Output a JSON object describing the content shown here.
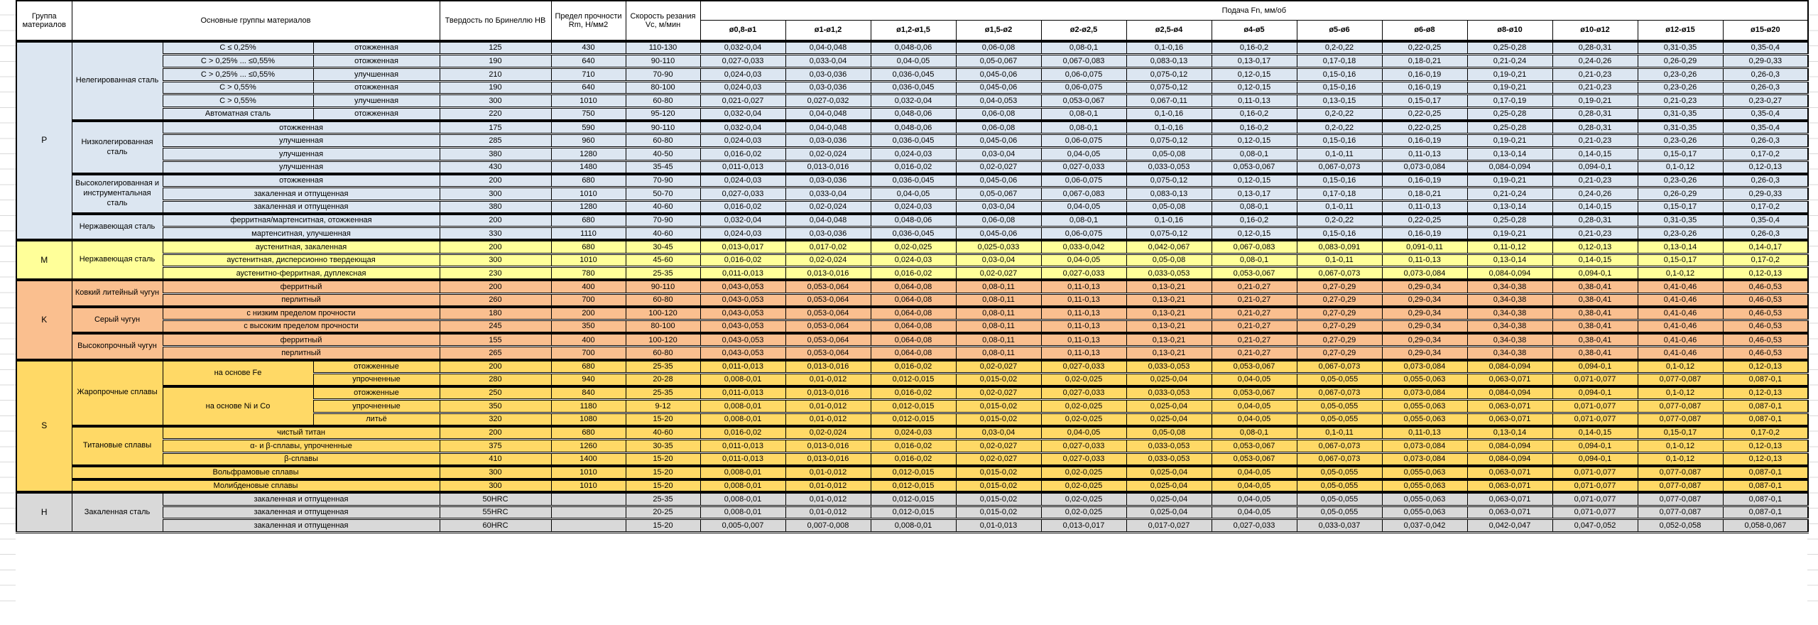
{
  "header": {
    "group": "Группа материалов",
    "materials": "Основные группы материалов",
    "hardness": "Твердость по Бринеллю HB",
    "strength": "Предел прочности Rm, Н/мм2",
    "speed": "Скорость резания Vc, м/мин",
    "feed": "Подача Fn, мм/об",
    "diameters": [
      "ø0,8-ø1",
      "ø1-ø1,2",
      "ø1,2-ø1,5",
      "ø1,5-ø2",
      "ø2-ø2,5",
      "ø2,5-ø4",
      "ø4-ø5",
      "ø5-ø6",
      "ø6-ø8",
      "ø8-ø10",
      "ø10-ø12",
      "ø12-ø15",
      "ø15-ø20"
    ]
  },
  "feed_sets": {
    "A": [
      "0,032-0,04",
      "0,04-0,048",
      "0,048-0,06",
      "0,06-0,08",
      "0,08-0,1",
      "0,1-0,16",
      "0,16-0,2",
      "0,2-0,22",
      "0,22-0,25",
      "0,25-0,28",
      "0,28-0,31",
      "0,31-0,35",
      "0,35-0,4"
    ],
    "B": [
      "0,027-0,033",
      "0,033-0,04",
      "0,04-0,05",
      "0,05-0,067",
      "0,067-0,083",
      "0,083-0,13",
      "0,13-0,17",
      "0,17-0,18",
      "0,18-0,21",
      "0,21-0,24",
      "0,24-0,26",
      "0,26-0,29",
      "0,29-0,33"
    ],
    "C": [
      "0,024-0,03",
      "0,03-0,036",
      "0,036-0,045",
      "0,045-0,06",
      "0,06-0,075",
      "0,075-0,12",
      "0,12-0,15",
      "0,15-0,16",
      "0,16-0,19",
      "0,19-0,21",
      "0,21-0,23",
      "0,23-0,26",
      "0,26-0,3"
    ],
    "D": [
      "0,021-0,027",
      "0,027-0,032",
      "0,032-0,04",
      "0,04-0,053",
      "0,053-0,067",
      "0,067-0,11",
      "0,11-0,13",
      "0,13-0,15",
      "0,15-0,17",
      "0,17-0,19",
      "0,19-0,21",
      "0,21-0,23",
      "0,23-0,27"
    ],
    "E": [
      "0,016-0,02",
      "0,02-0,024",
      "0,024-0,03",
      "0,03-0,04",
      "0,04-0,05",
      "0,05-0,08",
      "0,08-0,1",
      "0,1-0,11",
      "0,11-0,13",
      "0,13-0,14",
      "0,14-0,15",
      "0,15-0,17",
      "0,17-0,2"
    ],
    "F": [
      "0,011-0,013",
      "0,013-0,016",
      "0,016-0,02",
      "0,02-0,027",
      "0,027-0,033",
      "0,033-0,053",
      "0,053-0,067",
      "0,067-0,073",
      "0,073-0,084",
      "0,084-0,094",
      "0,094-0,1",
      "0,1-0,12",
      "0,12-0,13"
    ],
    "G": [
      "0,013-0,017",
      "0,017-0,02",
      "0,02-0,025",
      "0,025-0,033",
      "0,033-0,042",
      "0,042-0,067",
      "0,067-0,083",
      "0,083-0,091",
      "0,091-0,11",
      "0,11-0,12",
      "0,12-0,13",
      "0,13-0,14",
      "0,14-0,17"
    ],
    "H": [
      "0,043-0,053",
      "0,053-0,064",
      "0,064-0,08",
      "0,08-0,11",
      "0,11-0,13",
      "0,13-0,21",
      "0,21-0,27",
      "0,27-0,29",
      "0,29-0,34",
      "0,34-0,38",
      "0,38-0,41",
      "0,41-0,46",
      "0,46-0,53"
    ],
    "I": [
      "0,008-0,01",
      "0,01-0,012",
      "0,012-0,015",
      "0,015-0,02",
      "0,02-0,025",
      "0,025-0,04",
      "0,04-0,05",
      "0,05-0,055",
      "0,055-0,063",
      "0,063-0,071",
      "0,071-0,077",
      "0,077-0,087",
      "0,087-0,1"
    ],
    "J": [
      "0,005-0,007",
      "0,007-0,008",
      "0,008-0,01",
      "0,01-0,013",
      "0,013-0,017",
      "0,017-0,027",
      "0,027-0,033",
      "0,033-0,037",
      "0,037-0,042",
      "0,042-0,047",
      "0,047-0,052",
      "0,052-0,058",
      "0,058-0,067"
    ]
  },
  "groups": [
    {
      "letter": "P",
      "color": "#DCE6F1",
      "families": [
        {
          "name": "Нелегированная сталь",
          "rows": [
            {
              "cond1": "C ≤ 0,25%",
              "cond2": "отожженная",
              "hb": "125",
              "rm": "430",
              "vc": "110-130",
              "feeds": "A"
            },
            {
              "cond1": "C > 0,25% ... ≤0,55%",
              "cond2": "отожженная",
              "hb": "190",
              "rm": "640",
              "vc": "90-110",
              "feeds": "B"
            },
            {
              "cond1": "C > 0,25% ... ≤0,55%",
              "cond2": "улучшенная",
              "hb": "210",
              "rm": "710",
              "vc": "70-90",
              "feeds": "C"
            },
            {
              "cond1": "C > 0,55%",
              "cond2": "отожженная",
              "hb": "190",
              "rm": "640",
              "vc": "80-100",
              "feeds": "C"
            },
            {
              "cond1": "C > 0,55%",
              "cond2": "улучшенная",
              "hb": "300",
              "rm": "1010",
              "vc": "60-80",
              "feeds": "D"
            },
            {
              "cond1": "Автоматная сталь",
              "cond2": "отожженная",
              "hb": "220",
              "rm": "750",
              "vc": "95-120",
              "feeds": "A"
            }
          ]
        },
        {
          "name": "Низколегированная сталь",
          "rows": [
            {
              "cond": "отожженная",
              "hb": "175",
              "rm": "590",
              "vc": "90-110",
              "feeds": "A"
            },
            {
              "cond": "улучшенная",
              "hb": "285",
              "rm": "960",
              "vc": "60-80",
              "feeds": "C"
            },
            {
              "cond": "улучшенная",
              "hb": "380",
              "rm": "1280",
              "vc": "40-50",
              "feeds": "E"
            },
            {
              "cond": "улучшенная",
              "hb": "430",
              "rm": "1480",
              "vc": "35-45",
              "feeds": "F"
            }
          ]
        },
        {
          "name": "Высоколегированная и инструментальная сталь",
          "rows": [
            {
              "cond": "отожженная",
              "hb": "200",
              "rm": "680",
              "vc": "70-90",
              "feeds": "C"
            },
            {
              "cond": "закаленная и отпущенная",
              "hb": "300",
              "rm": "1010",
              "vc": "50-70",
              "feeds": "B"
            },
            {
              "cond": "закаленная и отпущенная",
              "hb": "380",
              "rm": "1280",
              "vc": "40-60",
              "feeds": "E"
            }
          ]
        },
        {
          "name": "Нержавеющая сталь",
          "rows": [
            {
              "cond": "ферритная/мартенситная, отожженная",
              "hb": "200",
              "rm": "680",
              "vc": "70-90",
              "feeds": "A"
            },
            {
              "cond": "мартенситная, улучшенная",
              "hb": "330",
              "rm": "1110",
              "vc": "40-60",
              "feeds": "C"
            }
          ]
        }
      ]
    },
    {
      "letter": "M",
      "color": "#FFFF99",
      "families": [
        {
          "name": "Нержавеющая сталь",
          "rows": [
            {
              "cond": "аустенитная, закаленная",
              "hb": "200",
              "rm": "680",
              "vc": "30-45",
              "feeds": "G"
            },
            {
              "cond": "аустенитная, дисперсионно твердеющая",
              "hb": "300",
              "rm": "1010",
              "vc": "45-60",
              "feeds": "E"
            },
            {
              "cond": "аустенитно-ферритная, дуплексная",
              "hb": "230",
              "rm": "780",
              "vc": "25-35",
              "feeds": "F"
            }
          ]
        }
      ]
    },
    {
      "letter": "K",
      "color": "#FABF8F",
      "families": [
        {
          "name": "Ковкий литейный чугун",
          "rows": [
            {
              "cond": "ферритный",
              "hb": "200",
              "rm": "400",
              "vc": "90-110",
              "feeds": "H"
            },
            {
              "cond": "перлитный",
              "hb": "260",
              "rm": "700",
              "vc": "60-80",
              "feeds": "H"
            }
          ]
        },
        {
          "name": "Серый чугун",
          "rows": [
            {
              "cond": "с низким пределом прочности",
              "hb": "180",
              "rm": "200",
              "vc": "100-120",
              "feeds": "H"
            },
            {
              "cond": "с высоким пределом прочности",
              "hb": "245",
              "rm": "350",
              "vc": "80-100",
              "feeds": "H"
            }
          ]
        },
        {
          "name": "Высокопрочный чугун",
          "rows": [
            {
              "cond": "ферритный",
              "hb": "155",
              "rm": "400",
              "vc": "100-120",
              "feeds": "H"
            },
            {
              "cond": "перлитный",
              "hb": "265",
              "rm": "700",
              "vc": "60-80",
              "feeds": "H"
            }
          ]
        }
      ]
    },
    {
      "letter": "S",
      "color": "#FFD966",
      "families": [
        {
          "name": "Жаропрочные сплавы",
          "rows": [
            {
              "sub1": "на основе Fe",
              "sub1span": 2,
              "cond2": "отожженные",
              "hb": "200",
              "rm": "680",
              "vc": "25-35",
              "feeds": "F"
            },
            {
              "cond2": "упрочненные",
              "hb": "280",
              "rm": "940",
              "vc": "20-28",
              "feeds": "I"
            },
            {
              "sub1": "на основе Ni и Co",
              "sub1span": 3,
              "cond2": "отожженные",
              "hb": "250",
              "rm": "840",
              "vc": "25-35",
              "feeds": "F"
            },
            {
              "cond2": "упрочненные",
              "hb": "350",
              "rm": "1180",
              "vc": "9-12",
              "feeds": "I"
            },
            {
              "cond2": "литьё",
              "hb": "320",
              "rm": "1080",
              "vc": "15-20",
              "feeds": "I"
            }
          ]
        },
        {
          "name": "Титановые сплавы",
          "rows": [
            {
              "cond": "чистый титан",
              "hb": "200",
              "rm": "680",
              "vc": "40-60",
              "feeds": "E"
            },
            {
              "cond": "α- и β-сплавы, упрочненные",
              "hb": "375",
              "rm": "1260",
              "vc": "30-35",
              "feeds": "F"
            },
            {
              "cond": "β-сплавы",
              "hb": "410",
              "rm": "1400",
              "vc": "15-20",
              "feeds": "F"
            }
          ]
        },
        {
          "name": null,
          "rows": [
            {
              "full": "Вольфрамовые сплавы",
              "hb": "300",
              "rm": "1010",
              "vc": "15-20",
              "feeds": "I"
            }
          ]
        },
        {
          "name": null,
          "rows": [
            {
              "full": "Молибденовые сплавы",
              "hb": "300",
              "rm": "1010",
              "vc": "15-20",
              "feeds": "I"
            }
          ]
        }
      ]
    },
    {
      "letter": "H",
      "color": "#D9D9D9",
      "families": [
        {
          "name": "Закаленная сталь",
          "rows": [
            {
              "cond": "закаленная и отпущенная",
              "hb": "50HRC",
              "rm": "",
              "vc": "25-35",
              "feeds": "I"
            },
            {
              "cond": "закаленная и отпущенная",
              "hb": "55HRC",
              "rm": "",
              "vc": "20-25",
              "feeds": "I"
            },
            {
              "cond": "закаленная и отпущенная",
              "hb": "60HRC",
              "rm": "",
              "vc": "15-20",
              "feeds": "J"
            }
          ]
        }
      ]
    }
  ]
}
